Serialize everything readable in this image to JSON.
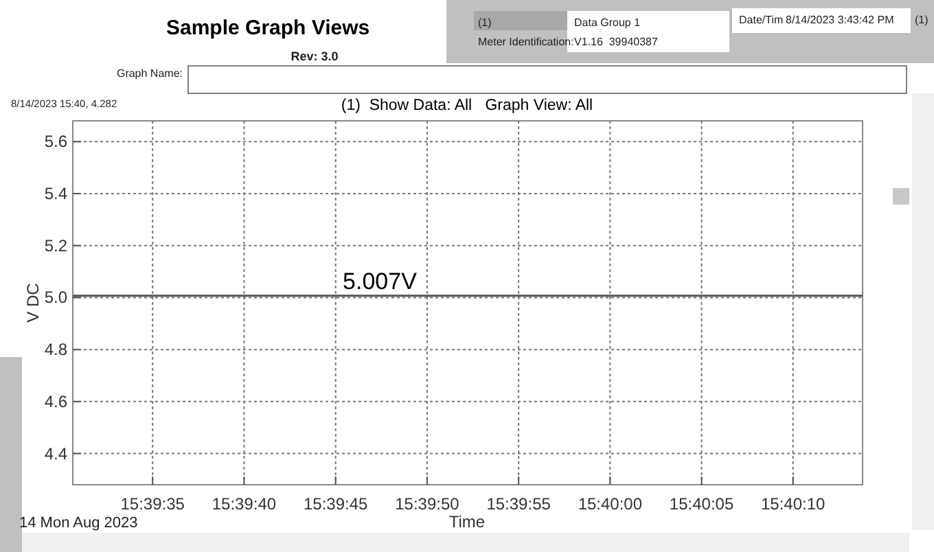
{
  "chart_data": {
    "type": "line",
    "title": "Sample Graph Views",
    "subtitle": "(1)  Show Data: All   Graph View: All",
    "xlabel": "Time",
    "ylabel": "V DC",
    "x": [
      15.65851,
      15.6705
    ],
    "series": [
      {
        "color": "#555555",
        "values": [
          5.007,
          5.007
        ]
      }
    ],
    "xlim": [
      15.65851,
      15.6705
    ],
    "xticks": [
      {
        "value": 15.659722,
        "label": "15:39:35"
      },
      {
        "value": 15.661111,
        "label": "15:39:40"
      },
      {
        "value": 15.6625,
        "label": "15:39:45"
      },
      {
        "value": 15.663889,
        "label": "15:39:50"
      },
      {
        "value": 15.665278,
        "label": "15:39:55"
      },
      {
        "value": 15.666667,
        "label": "15:40:00"
      },
      {
        "value": 15.668056,
        "label": "15:40:05"
      },
      {
        "value": 15.669444,
        "label": "15:40:10"
      }
    ],
    "ylim": [
      4.28,
      5.68
    ],
    "yticks": [
      {
        "value": 4.4,
        "label": "4.4"
      },
      {
        "value": 4.6,
        "label": "4.6"
      },
      {
        "value": 4.8,
        "label": "4.8"
      },
      {
        "value": 5.0,
        "label": "5.0"
      },
      {
        "value": 5.2,
        "label": "5.2"
      },
      {
        "value": 5.4,
        "label": "5.4"
      },
      {
        "value": 5.6,
        "label": "5.6"
      }
    ],
    "grid": true,
    "line_style": "solid",
    "marker": "none",
    "annotations": [
      "Rev: 3.0",
      "Graph Name:",
      "(1)",
      "Data Group 1",
      "Meter Identification:",
      "V1.16  39940387",
      "Date/Tim",
      "8/14/2023 3:43:42 PM",
      "(1)",
      "8/14/2023 15:40, 4.282",
      "14 Mon Aug 2023",
      {
        "text": "5.007V",
        "x": 15.66317,
        "y": 5.007
      }
    ]
  }
}
